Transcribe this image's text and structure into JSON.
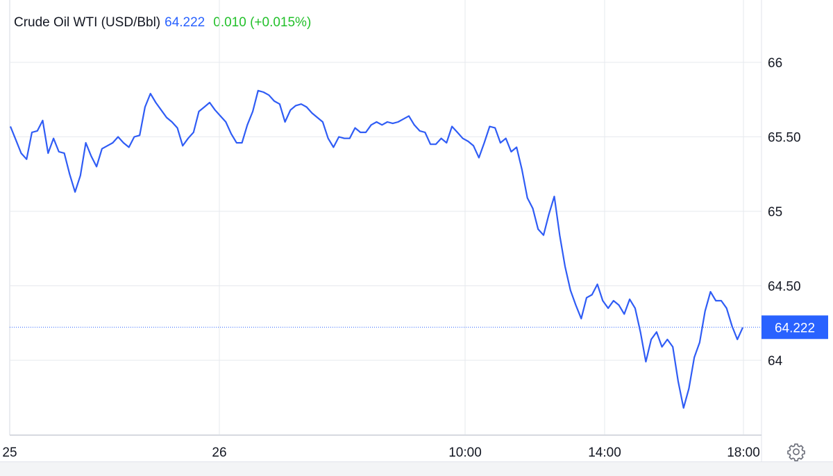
{
  "legend": {
    "instrument": "Crude Oil WTI (USD/Bbl)",
    "price": "64.222",
    "change": "0.010 (+0.015%)"
  },
  "colors": {
    "line": "#2f5cf5",
    "price": "#2962ff",
    "change": "#22c02a",
    "grid": "#e6e8ee"
  },
  "settings_icon": "gear-icon",
  "chart_data": {
    "type": "line",
    "title": "",
    "xlabel": "",
    "ylabel": "",
    "ylim": [
      63.55,
      66.35
    ],
    "grid": true,
    "y_ticks": [
      {
        "value": 66,
        "label": "66"
      },
      {
        "value": 65.5,
        "label": "65.50"
      },
      {
        "value": 65,
        "label": "65"
      },
      {
        "value": 64.5,
        "label": "64.50"
      },
      {
        "value": 64,
        "label": "64"
      }
    ],
    "x_ticks": [
      "25",
      "26",
      "10:00",
      "14:00",
      "18:00"
    ],
    "last_price_label": "64.222",
    "last_price": 64.222,
    "series": [
      {
        "values": [
          65.57,
          65.48,
          65.39,
          65.35,
          65.53,
          65.54,
          65.61,
          65.39,
          65.49,
          65.4,
          65.39,
          65.25,
          65.13,
          65.24,
          65.46,
          65.37,
          65.3,
          65.42,
          65.44,
          65.46,
          65.5,
          65.46,
          65.43,
          65.5,
          65.51,
          65.7,
          65.79,
          65.73,
          65.68,
          65.63,
          65.6,
          65.56,
          65.44,
          65.49,
          65.53,
          65.67,
          65.7,
          65.73,
          65.68,
          65.64,
          65.6,
          65.52,
          65.46,
          65.46,
          65.58,
          65.67,
          65.81,
          65.8,
          65.78,
          65.74,
          65.72,
          65.6,
          65.68,
          65.71,
          65.72,
          65.7,
          65.66,
          65.63,
          65.6,
          65.49,
          65.43,
          65.5,
          65.49,
          65.49,
          65.56,
          65.53,
          65.53,
          65.58,
          65.6,
          65.58,
          65.6,
          65.59,
          65.6,
          65.62,
          65.64,
          65.58,
          65.54,
          65.53,
          65.45,
          65.45,
          65.49,
          65.46,
          65.57,
          65.53,
          65.49,
          65.47,
          65.44,
          65.36,
          65.46,
          65.57,
          65.56,
          65.46,
          65.49,
          65.4,
          65.43,
          65.28,
          65.09,
          65.02,
          64.88,
          64.84,
          64.98,
          65.1,
          64.84,
          64.63,
          64.47,
          64.37,
          64.28,
          64.42,
          64.44,
          64.51,
          64.4,
          64.35,
          64.4,
          64.37,
          64.31,
          64.41,
          64.35,
          64.19,
          63.99,
          64.14,
          64.19,
          64.09,
          64.14,
          64.09,
          63.86,
          63.68,
          63.81,
          64.02,
          64.12,
          64.33,
          64.46,
          64.4,
          64.4,
          64.35,
          64.23,
          64.14,
          64.22
        ]
      }
    ]
  }
}
